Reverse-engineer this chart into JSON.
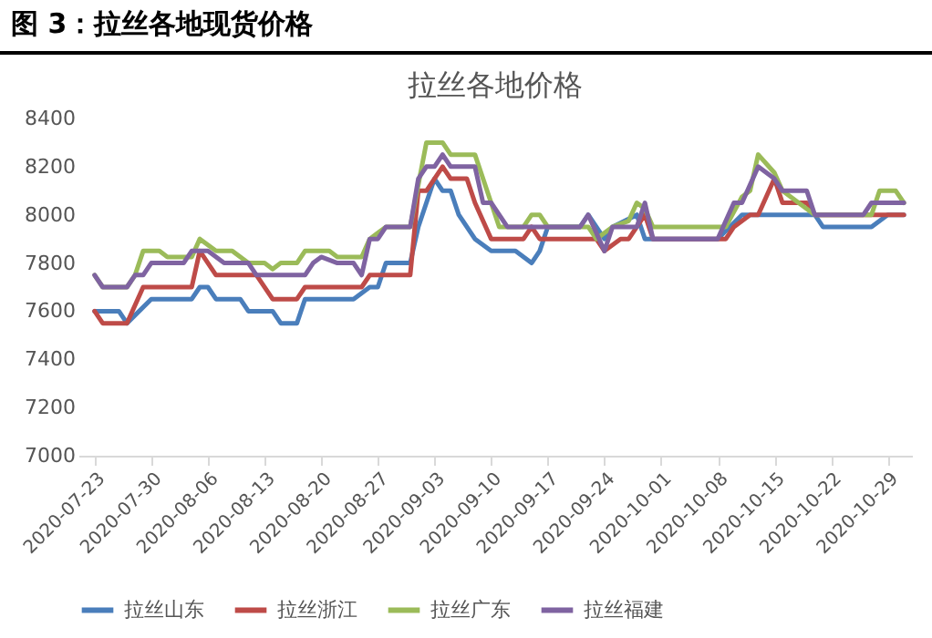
{
  "chart_data": {
    "type": "line",
    "title": "图 3：拉丝各地现货价格",
    "subtitle": "拉丝各地价格",
    "xlim": [
      "2020-07-21",
      "2020-11-01"
    ],
    "xticks": [
      "2020-07-23",
      "2020-07-30",
      "2020-08-06",
      "2020-08-13",
      "2020-08-20",
      "2020-08-27",
      "2020-09-03",
      "2020-09-10",
      "2020-09-17",
      "2020-09-24",
      "2020-10-01",
      "2020-10-08",
      "2020-10-15",
      "2020-10-22",
      "2020-10-29"
    ],
    "ylim": [
      7000,
      8400
    ],
    "yticks": [
      7000,
      7200,
      7400,
      7600,
      7800,
      8000,
      8200,
      8400
    ],
    "grid": false,
    "legend": "bottom",
    "marker": "none",
    "line_style": "solid",
    "series": [
      {
        "name": "拉丝山东",
        "color": "#4a7ebb",
        "x": [
          "2020-07-23",
          "2020-07-26",
          "2020-07-27",
          "2020-07-30",
          "2020-08-04",
          "2020-08-05",
          "2020-08-06",
          "2020-08-07",
          "2020-08-10",
          "2020-08-11",
          "2020-08-14",
          "2020-08-15",
          "2020-08-17",
          "2020-08-18",
          "2020-08-24",
          "2020-08-26",
          "2020-08-27",
          "2020-08-28",
          "2020-08-31",
          "2020-09-01",
          "2020-09-03",
          "2020-09-04",
          "2020-09-05",
          "2020-09-06",
          "2020-09-08",
          "2020-09-10",
          "2020-09-13",
          "2020-09-15",
          "2020-09-16",
          "2020-09-17",
          "2020-09-21",
          "2020-09-22",
          "2020-09-23",
          "2020-09-24",
          "2020-09-25",
          "2020-09-28",
          "2020-09-29",
          "2020-10-08",
          "2020-10-11",
          "2020-10-20",
          "2020-10-21",
          "2020-10-27",
          "2020-10-29",
          "2020-10-31"
        ],
        "values": [
          7600,
          7600,
          7550,
          7650,
          7650,
          7700,
          7700,
          7650,
          7650,
          7600,
          7600,
          7550,
          7550,
          7650,
          7650,
          7700,
          7700,
          7800,
          7800,
          7950,
          8150,
          8100,
          8100,
          8000,
          7900,
          7850,
          7850,
          7800,
          7850,
          7950,
          7950,
          8000,
          7950,
          7900,
          7950,
          8000,
          7900,
          7900,
          8000,
          8000,
          7950,
          7950,
          8000,
          8000
        ]
      },
      {
        "name": "拉丝浙江",
        "color": "#be4b48",
        "x": [
          "2020-07-23",
          "2020-07-24",
          "2020-07-27",
          "2020-07-29",
          "2020-08-04",
          "2020-08-05",
          "2020-08-07",
          "2020-08-12",
          "2020-08-14",
          "2020-08-17",
          "2020-08-18",
          "2020-08-25",
          "2020-08-26",
          "2020-08-31",
          "2020-09-01",
          "2020-09-02",
          "2020-09-04",
          "2020-09-05",
          "2020-09-07",
          "2020-09-08",
          "2020-09-10",
          "2020-09-14",
          "2020-09-15",
          "2020-09-16",
          "2020-09-23",
          "2020-09-24",
          "2020-09-26",
          "2020-09-27",
          "2020-09-29",
          "2020-09-30",
          "2020-10-09",
          "2020-10-10",
          "2020-10-12",
          "2020-10-13",
          "2020-10-15",
          "2020-10-16",
          "2020-10-19",
          "2020-10-20",
          "2020-10-31"
        ],
        "values": [
          7600,
          7550,
          7550,
          7700,
          7700,
          7850,
          7750,
          7750,
          7650,
          7650,
          7700,
          7700,
          7750,
          7750,
          8100,
          8100,
          8200,
          8150,
          8150,
          8050,
          7900,
          7900,
          7950,
          7900,
          7900,
          7850,
          7900,
          7900,
          8000,
          7900,
          7900,
          7950,
          8000,
          8000,
          8150,
          8050,
          8050,
          8000,
          8000
        ]
      },
      {
        "name": "拉丝广东",
        "color": "#9bbb59",
        "x": [
          "2020-07-23",
          "2020-07-24",
          "2020-07-27",
          "2020-07-28",
          "2020-07-29",
          "2020-07-31",
          "2020-08-01",
          "2020-08-04",
          "2020-08-05",
          "2020-08-07",
          "2020-08-09",
          "2020-08-11",
          "2020-08-13",
          "2020-08-14",
          "2020-08-15",
          "2020-08-17",
          "2020-08-18",
          "2020-08-21",
          "2020-08-22",
          "2020-08-25",
          "2020-08-26",
          "2020-08-28",
          "2020-08-31",
          "2020-09-02",
          "2020-09-04",
          "2020-09-05",
          "2020-09-08",
          "2020-09-10",
          "2020-09-11",
          "2020-09-14",
          "2020-09-15",
          "2020-09-16",
          "2020-09-17",
          "2020-09-22",
          "2020-09-23",
          "2020-09-25",
          "2020-09-27",
          "2020-09-28",
          "2020-09-29",
          "2020-09-30",
          "2020-10-09",
          "2020-10-11",
          "2020-10-12",
          "2020-10-13",
          "2020-10-15",
          "2020-10-16",
          "2020-10-20",
          "2020-10-27",
          "2020-10-28",
          "2020-10-30",
          "2020-10-31"
        ],
        "values": [
          7750,
          7700,
          7700,
          7750,
          7850,
          7850,
          7825,
          7825,
          7900,
          7850,
          7850,
          7800,
          7800,
          7775,
          7800,
          7800,
          7850,
          7850,
          7825,
          7825,
          7900,
          7950,
          7950,
          8300,
          8300,
          8250,
          8250,
          8050,
          7950,
          7950,
          8000,
          8000,
          7950,
          7950,
          7900,
          7950,
          7975,
          8050,
          8025,
          7950,
          7950,
          8075,
          8100,
          8250,
          8175,
          8100,
          8000,
          8000,
          8100,
          8100,
          8050
        ]
      },
      {
        "name": "拉丝福建",
        "color": "#7f63a1",
        "x": [
          "2020-07-23",
          "2020-07-24",
          "2020-07-27",
          "2020-07-28",
          "2020-07-29",
          "2020-07-30",
          "2020-08-03",
          "2020-08-04",
          "2020-08-06",
          "2020-08-08",
          "2020-08-11",
          "2020-08-12",
          "2020-08-18",
          "2020-08-19",
          "2020-08-20",
          "2020-08-22",
          "2020-08-24",
          "2020-08-25",
          "2020-08-26",
          "2020-08-27",
          "2020-08-28",
          "2020-08-31",
          "2020-09-01",
          "2020-09-02",
          "2020-09-03",
          "2020-09-04",
          "2020-09-05",
          "2020-09-08",
          "2020-09-09",
          "2020-09-10",
          "2020-09-12",
          "2020-09-21",
          "2020-09-22",
          "2020-09-24",
          "2020-09-25",
          "2020-09-28",
          "2020-09-29",
          "2020-09-30",
          "2020-10-08",
          "2020-10-10",
          "2020-10-11",
          "2020-10-13",
          "2020-10-15",
          "2020-10-16",
          "2020-10-19",
          "2020-10-20",
          "2020-10-26",
          "2020-10-27",
          "2020-10-31"
        ],
        "values": [
          7750,
          7700,
          7700,
          7750,
          7750,
          7800,
          7800,
          7850,
          7850,
          7800,
          7800,
          7750,
          7750,
          7800,
          7825,
          7800,
          7800,
          7750,
          7900,
          7900,
          7950,
          7950,
          8150,
          8200,
          8200,
          8250,
          8200,
          8200,
          8050,
          8050,
          7950,
          7950,
          8000,
          7850,
          7950,
          7950,
          8050,
          7900,
          7900,
          8050,
          8050,
          8200,
          8150,
          8100,
          8100,
          8000,
          8000,
          8050,
          8050
        ]
      }
    ]
  }
}
